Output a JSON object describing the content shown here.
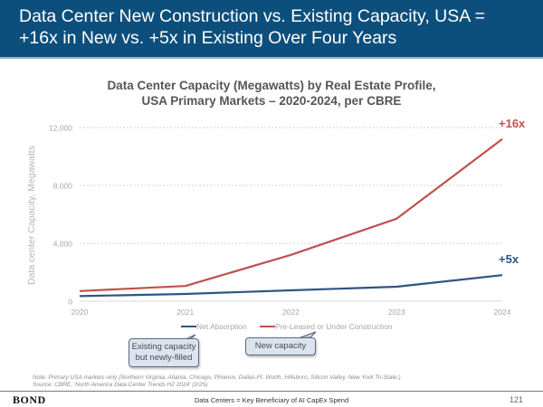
{
  "header": {
    "title_line1": "Data Center New Construction vs. Existing Capacity, USA =",
    "title_line2": "+16x in New vs. +5x in Existing Over Four Years"
  },
  "chart_data": {
    "type": "line",
    "title_line1": "Data Center Capacity (Megawatts) by Real Estate Profile,",
    "title_line2": "USA Primary Markets – 2020-2024, per CBRE",
    "xlabel": "",
    "ylabel": "Data center Capacity, Megawatts",
    "x": [
      "2020",
      "2021",
      "2022",
      "2023",
      "2024"
    ],
    "ylim": [
      0,
      12000
    ],
    "yticks": [
      0,
      4000,
      8000,
      12000
    ],
    "ytick_labels": [
      "0",
      "4,000",
      "8,000",
      "12,000"
    ],
    "grid": true,
    "legend_position": "bottom",
    "series": [
      {
        "name": "Net Absorption",
        "color": "#2f5486",
        "values": [
          350,
          500,
          750,
          1000,
          1800
        ],
        "annotation": "+5x"
      },
      {
        "name": "Pre-Leased or Under Construction",
        "color": "#c0504d",
        "values": [
          700,
          1050,
          3200,
          5700,
          11200
        ],
        "annotation": "+16x"
      }
    ]
  },
  "callouts": {
    "existing_line1": "Existing capacity",
    "existing_line2": "but newly-filled",
    "new": "New capacity"
  },
  "note": {
    "line1": "Note: Primary USA markets only (Northern Virginia, Atlanta, Chicago, Phoenix, Dallas-Ft. Worth, Hillsboro, Silicon Valley, New York Tri-State.)",
    "line2": "Source: CBRE, 'North America Data Center Trends H2 2024' (2/25)"
  },
  "footer": {
    "logo": "BOND",
    "center": "Data Centers = Key Beneficiary of AI CapEx Spend",
    "page": "121"
  }
}
